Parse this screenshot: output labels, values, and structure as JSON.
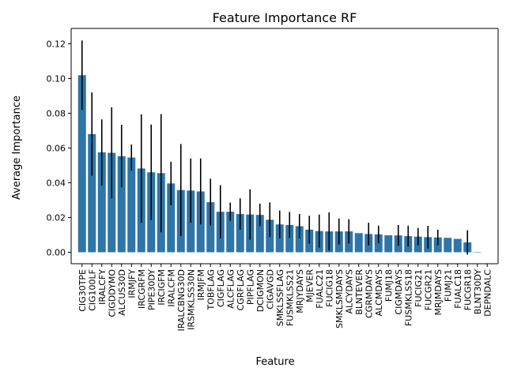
{
  "chart_data": {
    "type": "bar",
    "title": "Feature Importance RF",
    "xlabel": "Feature",
    "ylabel": "Average Importance",
    "ylim": [
      -0.0066,
      0.1288
    ],
    "yticks": [
      0.0,
      0.02,
      0.04,
      0.06,
      0.08,
      0.1,
      0.12
    ],
    "ytick_labels": [
      "0.00",
      "0.02",
      "0.04",
      "0.06",
      "0.08",
      "0.10",
      "0.12"
    ],
    "grid": false,
    "bar_color": "#2e75a8",
    "error_color": "#000000",
    "categories": [
      "CIG30TPE",
      "CIG100LF",
      "IRALCFY",
      "CIGDDYMO",
      "ALCUS30D",
      "IRMJFY",
      "IRCGRFM",
      "PIPE30DY",
      "IRCIGFM",
      "IRALCFM",
      "IRALCBNG30D",
      "IRSMKLSS30N",
      "IRMJFM",
      "TOBFLAG",
      "CIGFLAG",
      "ALCFLAG",
      "CGRFLAG",
      "PIPFLAG",
      "DCIGMON",
      "CIGAVGD",
      "SMKLSSFLAG",
      "FUSMKLSS21",
      "MRJYDAYS",
      "MJEVER",
      "FUALC21",
      "FUCIG18",
      "SMKLSMDAYS",
      "ALCYDAYS",
      "BLNTEVER",
      "CGRMDAYS",
      "ALCMDAYS",
      "FUMJ18",
      "CIGMDAYS",
      "FUSMKLSS18",
      "FUCIG21",
      "FUCGR21",
      "MRJMDAYS",
      "FUMJ21",
      "FUALC18",
      "FUCGR18",
      "BLNT30DY",
      "DEPNDALC"
    ],
    "category_labels": [
      "CIG30TPE",
      "CIG100LF",
      "IRALCFY",
      "CIGDDYMO",
      "ALCUS30D",
      "IRMJFY",
      "IRCGRFM",
      "PIPE30DY",
      "IRCIGFM",
      "IRALCFM",
      "IRALCBNG30D",
      "IRSMKLSS30N",
      "IRMJFM",
      "TOBFLAG",
      "CIGFLAG",
      "ALCFLAG",
      "CGRFLAG",
      "PIPFLAG",
      "DCIGMON",
      "CIGAVGD",
      "SMKLSSFLAG",
      "FUSMKLSS21",
      "MRJYDAYS",
      "MJEVER",
      "FUALC21",
      "FUCIG18",
      "SMKLSMDAYS",
      "ALCYDAYS",
      "BLNTEVER",
      "CGRMDAYS",
      "ALCMDAYS",
      "FUMJ18",
      "CIGMDAYS",
      "FUSMKLSS18",
      "FUCIG21",
      "FUCGR21",
      "MRJMDAYS",
      "FUMJ21",
      "FUALC18",
      "FUCGR18",
      "BLNT30DY",
      "DEPNDALC"
    ],
    "values": [
      0.1019,
      0.068,
      0.0575,
      0.0572,
      0.0553,
      0.0545,
      0.0482,
      0.046,
      0.0455,
      0.0396,
      0.0358,
      0.0355,
      0.035,
      0.0288,
      0.0233,
      0.0233,
      0.022,
      0.0217,
      0.0215,
      0.0187,
      0.016,
      0.0157,
      0.015,
      0.013,
      0.0122,
      0.012,
      0.012,
      0.012,
      0.011,
      0.0105,
      0.0103,
      0.0098,
      0.0097,
      0.0093,
      0.009,
      0.0087,
      0.0085,
      0.0083,
      0.0077,
      0.0057,
      0.0002,
      0.0
    ],
    "errors": [
      0.02,
      0.024,
      0.019,
      0.0262,
      0.018,
      0.0075,
      0.0312,
      0.0275,
      0.034,
      0.0125,
      0.0265,
      0.0185,
      0.019,
      0.0135,
      0.0153,
      0.0053,
      0.009,
      0.0145,
      0.0065,
      0.01,
      0.008,
      0.0075,
      0.007,
      0.008,
      0.0095,
      0.011,
      0.0075,
      0.007,
      0.0,
      0.0065,
      0.005,
      0.0,
      0.006,
      0.006,
      0.005,
      0.0065,
      0.0045,
      0.0,
      0.0,
      0.007,
      0.0,
      0.0
    ]
  }
}
